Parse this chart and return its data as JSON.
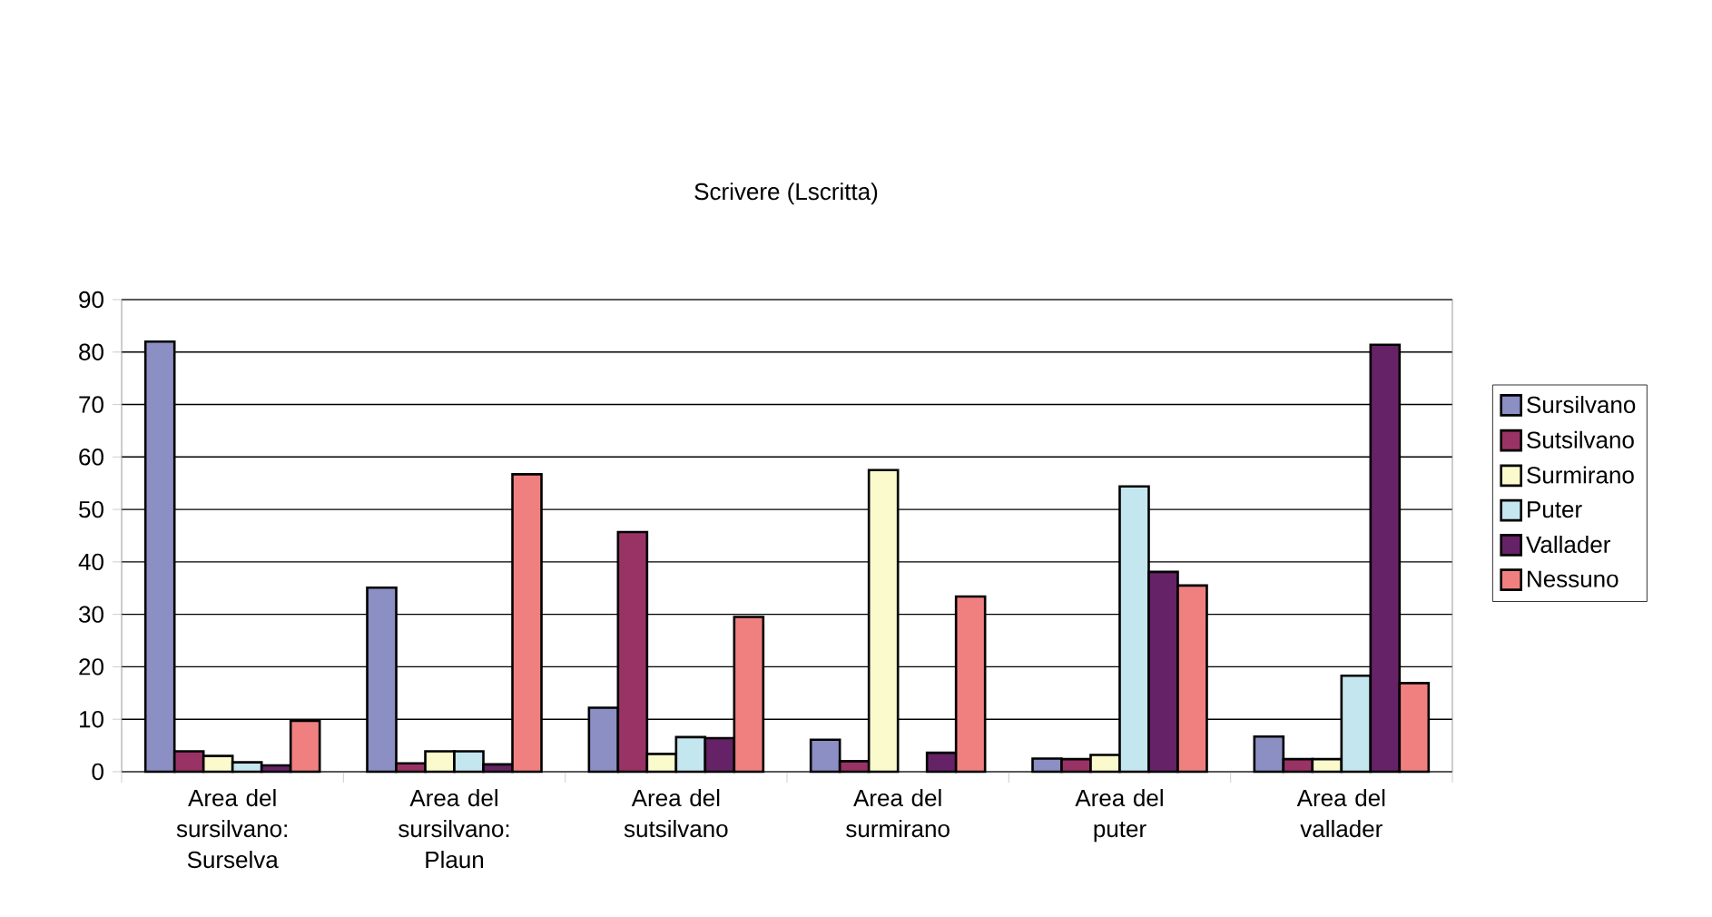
{
  "chart_data": {
    "type": "bar",
    "title": "Scrivere (Lscritta)",
    "categories": [
      "Area del sursilvano: Surselva",
      "Area del sursilvano: Plaun",
      "Area del sutsilvano",
      "Area del surmirano",
      "Area del puter",
      "Area del vallader"
    ],
    "series": [
      {
        "name": "Sursilvano",
        "color": "#8b8fc4",
        "values": [
          82,
          35.1,
          12.2,
          6.1,
          2.5,
          6.7
        ]
      },
      {
        "name": "Sutsilvano",
        "color": "#993366",
        "values": [
          3.9,
          1.6,
          45.7,
          2.0,
          2.4,
          2.4
        ]
      },
      {
        "name": "Surmirano",
        "color": "#fafacc",
        "values": [
          3.0,
          3.9,
          3.4,
          57.5,
          3.2,
          2.4
        ]
      },
      {
        "name": "Puter",
        "color": "#c4e6ee",
        "values": [
          1.8,
          3.9,
          6.6,
          null,
          54.4,
          18.3
        ]
      },
      {
        "name": "Vallader",
        "color": "#662266",
        "values": [
          1.2,
          1.4,
          6.4,
          3.6,
          38.1,
          81.4
        ]
      },
      {
        "name": "Nessuno",
        "color": "#f08080",
        "values": [
          9.7,
          56.7,
          29.5,
          33.4,
          35.5,
          16.9
        ]
      }
    ],
    "ylim": [
      0,
      90
    ],
    "yticks": [
      0,
      10,
      20,
      30,
      40,
      50,
      60,
      70,
      80,
      90
    ],
    "grid": "y",
    "legend": "right"
  }
}
